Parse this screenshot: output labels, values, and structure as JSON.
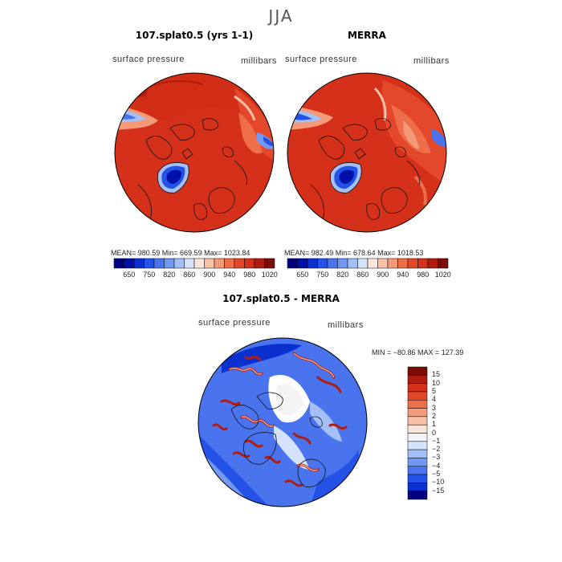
{
  "season_title": "JJA",
  "panels": [
    {
      "title": "107.splat0.5 (yrs 1-1)",
      "variable_label": "surface pressure",
      "units_label": "millibars",
      "stats": "MEAN= 980.59   Min= 669.59   Max= 1023.84",
      "colorbar_ticks": [
        "650",
        "750",
        "820",
        "860",
        "900",
        "940",
        "980",
        "1020"
      ]
    },
    {
      "title": "MERRA",
      "variable_label": "surface pressure",
      "units_label": "millibars",
      "stats": "MEAN= 982.49   Min= 678.64   Max= 1018.53",
      "colorbar_ticks": [
        "650",
        "750",
        "820",
        "860",
        "900",
        "940",
        "980",
        "1020"
      ]
    }
  ],
  "diff_panel": {
    "title": "107.splat0.5 - MERRA",
    "variable_label": "surface pressure",
    "units_label": "millibars",
    "minmax": "MIN = −80.86 MAX = 127.39",
    "colorbar_ticks": [
      "15",
      "10",
      "5",
      "4",
      "3",
      "2",
      "1",
      "0",
      "−1",
      "−2",
      "−3",
      "−4",
      "−5",
      "−10",
      "−15"
    ]
  },
  "colors": {
    "abs_scale": [
      "#00007f",
      "#0010a8",
      "#0a30d0",
      "#2452e6",
      "#4a74ee",
      "#7298f2",
      "#a4c0f6",
      "#d4e2fa",
      "#fbe6dc",
      "#f8c2a8",
      "#f49a78",
      "#ee6e4a",
      "#e4482a",
      "#d4301a",
      "#b01c0e",
      "#7a0a04"
    ],
    "diff_scale": [
      "#7a0a04",
      "#b01c0e",
      "#d4301a",
      "#e4482a",
      "#ee6e4a",
      "#f49a78",
      "#f8c2a8",
      "#fbe6dc",
      "#f4f4f6",
      "#d4e2fa",
      "#a4c0f6",
      "#7298f2",
      "#4a74ee",
      "#2452e6",
      "#0a30d0",
      "#00007f"
    ]
  },
  "chart_data": [
    {
      "type": "heatmap",
      "title": "107.splat0.5 (yrs 1-1)",
      "variable": "surface pressure",
      "units": "millibars",
      "season": "JJA",
      "projection": "polar stereographic (north)",
      "mean": 980.59,
      "min": 669.59,
      "max": 1023.84,
      "colorbar_levels": [
        650,
        750,
        820,
        860,
        900,
        940,
        980,
        1020
      ]
    },
    {
      "type": "heatmap",
      "title": "MERRA",
      "variable": "surface pressure",
      "units": "millibars",
      "season": "JJA",
      "projection": "polar stereographic (north)",
      "mean": 982.49,
      "min": 678.64,
      "max": 1018.53,
      "colorbar_levels": [
        650,
        750,
        820,
        860,
        900,
        940,
        980,
        1020
      ]
    },
    {
      "type": "heatmap",
      "title": "107.splat0.5 - MERRA",
      "variable": "surface pressure",
      "units": "millibars",
      "season": "JJA",
      "projection": "polar stereographic (north)",
      "min": -80.86,
      "max": 127.39,
      "colorbar_levels": [
        15,
        10,
        5,
        4,
        3,
        2,
        1,
        0,
        -1,
        -2,
        -3,
        -4,
        -5,
        -10,
        -15
      ]
    }
  ]
}
